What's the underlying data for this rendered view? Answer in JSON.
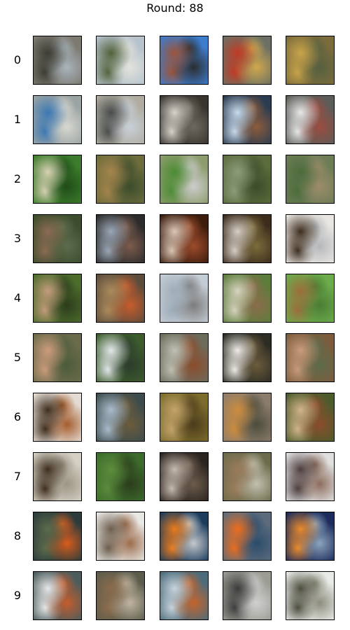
{
  "title": "Round: 88",
  "rows": [
    {
      "label": "0",
      "samples": [
        [
          "#7d7a70",
          "#3c3c34",
          "#a8b4bc"
        ],
        [
          "#b6c2cc",
          "#52623a",
          "#e2e4dc"
        ],
        [
          "#3e7ccc",
          "#9c5438",
          "#2c2e30"
        ],
        [
          "#6c7064",
          "#c23a24",
          "#d0a84c"
        ],
        [
          "#7c6c3c",
          "#c8a44a",
          "#556040"
        ]
      ]
    },
    {
      "label": "1",
      "samples": [
        [
          "#9aa4a4",
          "#3c78b4",
          "#d8d8d0"
        ],
        [
          "#b0aca0",
          "#484c4c",
          "#c8d0d8"
        ],
        [
          "#38342e",
          "#d8d4cc",
          "#6c6a60"
        ],
        [
          "#2c3c50",
          "#c8dcec",
          "#8c5c3c"
        ],
        [
          "#5c5c58",
          "#e8e8e8",
          "#9c4c40"
        ]
      ]
    },
    {
      "label": "2",
      "samples": [
        [
          "#3c7c2c",
          "#d8d0b4",
          "#204c18"
        ],
        [
          "#6c6c3c",
          "#a4844c",
          "#3c4c2c"
        ],
        [
          "#8c9c6c",
          "#4c8c34",
          "#cccccc"
        ],
        [
          "#5c6c3c",
          "#8c9c7c",
          "#3c4c2c"
        ],
        [
          "#6c7c54",
          "#4c6c3c",
          "#9c8c6c"
        ]
      ]
    },
    {
      "label": "3",
      "samples": [
        [
          "#3c4c2c",
          "#8c6c54",
          "#5c6c4c"
        ],
        [
          "#2c2c2c",
          "#9ca8b8",
          "#7c5c4c"
        ],
        [
          "#3c1c0c",
          "#dcc8b8",
          "#9c4c2c"
        ],
        [
          "#3c2c1c",
          "#d8d0c8",
          "#7c6c3c"
        ],
        [
          "#eae6e2",
          "#3c2c1c",
          "#b4b8bc"
        ]
      ]
    },
    {
      "label": "4",
      "samples": [
        [
          "#4c6c2c",
          "#c49c7c",
          "#2c3c1c"
        ],
        [
          "#5c4c3c",
          "#ac8c5c",
          "#c85c2c"
        ],
        [
          "#c4ccd4",
          "#9cacb8",
          "#7c7c7c"
        ],
        [
          "#5c7c3c",
          "#d8d4c0",
          "#8c6c4c"
        ],
        [
          "#6cac4c",
          "#9c6c3c",
          "#4c7c34"
        ]
      ]
    },
    {
      "label": "5",
      "samples": [
        [
          "#6c6c4c",
          "#cc9c7c",
          "#4c5c3c"
        ],
        [
          "#3c5c2c",
          "#e4e8ec",
          "#2c3c2c"
        ],
        [
          "#6c6c5c",
          "#c0c0b4",
          "#8c4c2c"
        ],
        [
          "#2c2c24",
          "#f0ece8",
          "#6c5c3c"
        ],
        [
          "#7c5c3c",
          "#c89c7c",
          "#5c6c4c"
        ]
      ]
    },
    {
      "label": "6",
      "samples": [
        [
          "#e4dcd4",
          "#3c2c1c",
          "#a45c2c"
        ],
        [
          "#3c4c4c",
          "#acbccc",
          "#6c5c3c"
        ],
        [
          "#7c6c2c",
          "#c4a46c",
          "#4c3c1c"
        ],
        [
          "#8c7c6c",
          "#cc8c3c",
          "#4c4c3c"
        ],
        [
          "#4c5c2c",
          "#d4b48c",
          "#8c4c2c"
        ]
      ]
    },
    {
      "label": "7",
      "samples": [
        [
          "#d4d0c4",
          "#3c2c1c",
          "#9c9484"
        ],
        [
          "#3c6c2c",
          "#5c8c3c",
          "#2c3c1c"
        ],
        [
          "#2c2420",
          "#c8bcb0",
          "#6c5c4c"
        ],
        [
          "#6c6c4c",
          "#9c7c5c",
          "#c4c0b0"
        ],
        [
          "#e0e0e0",
          "#4c3c3c",
          "#8c6c5c"
        ]
      ]
    },
    {
      "label": "8",
      "samples": [
        [
          "#2c3c3c",
          "#5c6c4c",
          "#d85c1c"
        ],
        [
          "#e8e8e4",
          "#6c5c4c",
          "#9c6c4c"
        ],
        [
          "#1c3c5c",
          "#ec7c1c",
          "#c4c8cc"
        ],
        [
          "#5c6c7c",
          "#ec6c1c",
          "#2c4c6c"
        ],
        [
          "#1c2c5c",
          "#ec8c2c",
          "#8ca4bc"
        ]
      ]
    },
    {
      "label": "9",
      "samples": [
        [
          "#4c5c5c",
          "#e8e8e8",
          "#c45c2c"
        ],
        [
          "#5c5c4c",
          "#8c6c4c",
          "#c0b4a0"
        ],
        [
          "#4c6c7c",
          "#c8d4dc",
          "#c4642c"
        ],
        [
          "#9c9c94",
          "#3c3c3c",
          "#d0d0d0"
        ],
        [
          "#e8ece8",
          "#4c4c3c",
          "#8c8c7c"
        ]
      ]
    }
  ]
}
